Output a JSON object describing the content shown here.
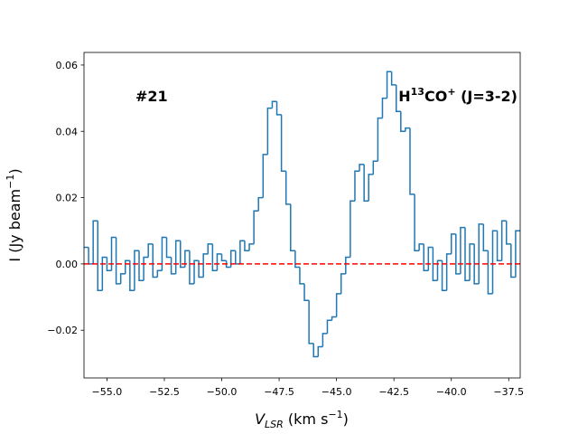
{
  "chart_data": {
    "type": "step",
    "annotations": [
      {
        "parts": [
          "#21"
        ]
      },
      {
        "parts": [
          "H",
          "13",
          "CO",
          "+",
          " (J=3-2)"
        ]
      }
    ],
    "x_label": [
      "V",
      "LSR",
      " (km s",
      "−1",
      ")"
    ],
    "y_label": [
      "I (Jy beam",
      "−1",
      ")"
    ],
    "xlim": [
      -56,
      -37
    ],
    "ylim": [
      -0.0344,
      0.0638
    ],
    "xticks": [
      {
        "value": -55,
        "label": "−55.0"
      },
      {
        "value": -52.5,
        "label": "−52.5"
      },
      {
        "value": -50,
        "label": "−50.0"
      },
      {
        "value": -47.5,
        "label": "−47.5"
      },
      {
        "value": -45,
        "label": "−45.0"
      },
      {
        "value": -42.5,
        "label": "−42.5"
      },
      {
        "value": -40,
        "label": "−40.0"
      },
      {
        "value": -37.5,
        "label": "−37.5"
      }
    ],
    "yticks": [
      {
        "value": -0.02,
        "label": "−0.02"
      },
      {
        "value": 0,
        "label": "0.00"
      },
      0.02,
      0.04,
      0.06
    ],
    "hline": {
      "y": 0,
      "color": "#ff0000"
    },
    "series": [
      {
        "color": "#1f77b4",
        "x": [
          -55.9,
          -55.7,
          -55.5,
          -55.3,
          -55.1,
          -54.9,
          -54.7,
          -54.5,
          -54.3,
          -54.1,
          -53.9,
          -53.7,
          -53.5,
          -53.3,
          -53.1,
          -52.9,
          -52.7,
          -52.5,
          -52.3,
          -52.1,
          -51.9,
          -51.7,
          -51.5,
          -51.3,
          -51.1,
          -50.9,
          -50.7,
          -50.5,
          -50.3,
          -50.1,
          -49.9,
          -49.7,
          -49.5,
          -49.3,
          -49.1,
          -48.9,
          -48.7,
          -48.5,
          -48.3,
          -48.1,
          -47.9,
          -47.7,
          -47.5,
          -47.3,
          -47.1,
          -46.9,
          -46.7,
          -46.5,
          -46.3,
          -46.1,
          -45.9,
          -45.7,
          -45.5,
          -45.3,
          -45.1,
          -44.9,
          -44.7,
          -44.5,
          -44.3,
          -44.1,
          -43.9,
          -43.7,
          -43.5,
          -43.3,
          -43.1,
          -42.9,
          -42.7,
          -42.5,
          -42.3,
          -42.1,
          -41.9,
          -41.7,
          -41.5,
          -41.3,
          -41.1,
          -40.9,
          -40.7,
          -40.5,
          -40.3,
          -40.1,
          -39.9,
          -39.7,
          -39.5,
          -39.3,
          -39.1,
          -38.9,
          -38.7,
          -38.5,
          -38.3,
          -38.1,
          -37.9,
          -37.7,
          -37.5,
          -37.3,
          -37.1
        ],
        "values": [
          0.005,
          0.0,
          0.013,
          -0.008,
          0.002,
          -0.002,
          0.008,
          -0.006,
          -0.003,
          0.001,
          -0.008,
          0.004,
          -0.005,
          0.002,
          0.006,
          -0.004,
          -0.002,
          0.008,
          0.002,
          -0.003,
          0.007,
          -0.001,
          0.004,
          -0.006,
          0.001,
          -0.004,
          0.003,
          0.006,
          -0.002,
          0.003,
          0.001,
          -0.001,
          0.004,
          0.0,
          0.007,
          0.004,
          0.006,
          0.016,
          0.02,
          0.033,
          0.047,
          0.049,
          0.045,
          0.028,
          0.018,
          0.004,
          -0.001,
          -0.006,
          -0.011,
          -0.024,
          -0.028,
          -0.025,
          -0.021,
          -0.017,
          -0.016,
          -0.009,
          -0.003,
          0.002,
          0.019,
          0.028,
          0.03,
          0.019,
          0.027,
          0.031,
          0.044,
          0.05,
          0.058,
          0.054,
          0.046,
          0.04,
          0.041,
          0.021,
          0.004,
          0.006,
          -0.002,
          0.005,
          -0.005,
          0.001,
          -0.008,
          0.003,
          0.009,
          -0.003,
          0.011,
          -0.005,
          0.006,
          -0.006,
          0.012,
          0.004,
          -0.009,
          0.01,
          0.001,
          0.013,
          0.006,
          -0.004,
          0.01
        ]
      }
    ]
  }
}
